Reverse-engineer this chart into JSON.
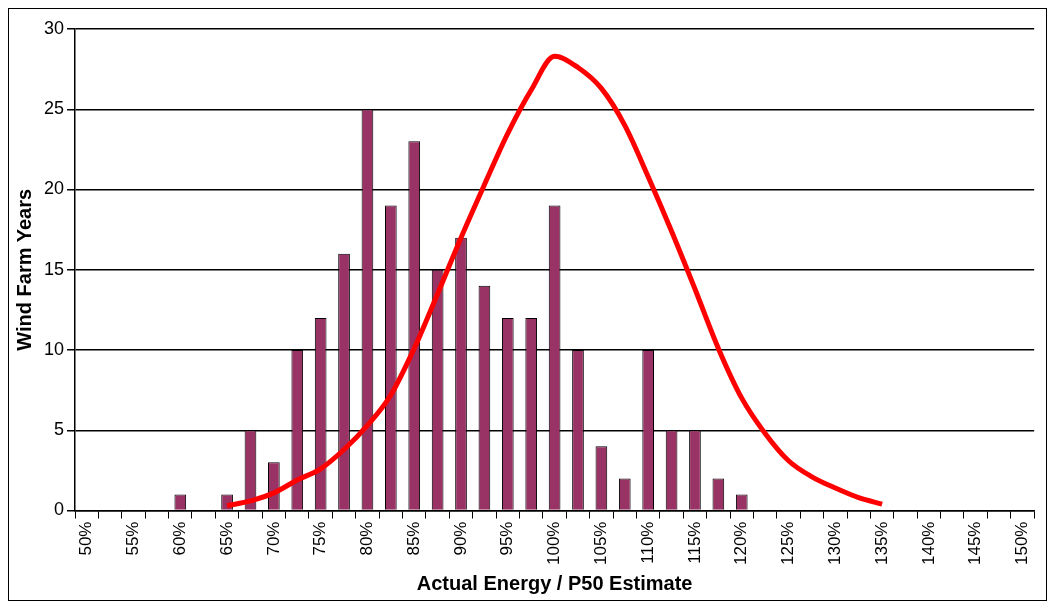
{
  "chart_data": {
    "type": "bar",
    "xlabel": "Actual Energy / P50 Estimate",
    "ylabel": "Wind Farm Years",
    "categories": [
      "50%",
      null,
      "55%",
      null,
      "60%",
      null,
      "65%",
      null,
      "70%",
      null,
      "75%",
      null,
      "80%",
      null,
      "85%",
      null,
      "90%",
      null,
      "95%",
      null,
      "100%",
      null,
      "105%",
      null,
      "110%",
      null,
      "115%",
      null,
      "120%",
      null,
      "125%",
      null,
      "130%",
      null,
      "135%",
      null,
      "140%",
      null,
      "145%",
      null,
      "150%"
    ],
    "series": [
      {
        "color": "#993366",
        "values": [
          0,
          0,
          0,
          0,
          1,
          0,
          1,
          5,
          3,
          10,
          12,
          16,
          25,
          19,
          23,
          15,
          17,
          14,
          12,
          12,
          19,
          10,
          4,
          2,
          10,
          5,
          5,
          2,
          1,
          0,
          0,
          0,
          0,
          0,
          0,
          0,
          0,
          0,
          0,
          0,
          0
        ]
      },
      {
        "type": "line",
        "color": "#ff0000",
        "values": [
          null,
          null,
          null,
          null,
          null,
          null,
          0.3,
          0.6,
          1.1,
          1.9,
          2.6,
          3.8,
          5.3,
          7.2,
          10.1,
          13.5,
          17,
          20.3,
          23.5,
          26.2,
          28.3,
          27.6,
          26.3,
          24,
          20.8,
          17.4,
          13.8,
          10.1,
          7,
          4.8,
          3.1,
          2.1,
          1.4,
          0.8,
          0.4,
          null,
          null,
          null,
          null,
          null,
          null
        ]
      }
    ],
    "ylim": [
      0,
      30
    ],
    "yticks": [
      0,
      5,
      10,
      15,
      20,
      25,
      30
    ],
    "grid": "y",
    "legend": false,
    "marker": "none"
  }
}
